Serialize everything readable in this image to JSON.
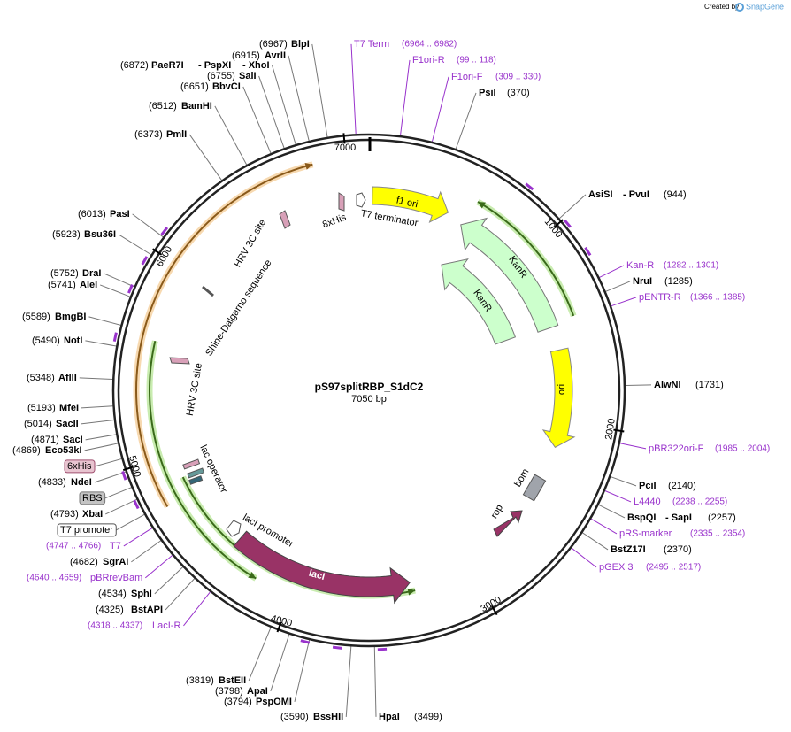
{
  "header": {
    "created_by": "Created by",
    "brand": "SnapGene"
  },
  "map": {
    "title": "pS97splitRBP_S1dC2",
    "length": "7050 bp",
    "ticks": [
      1000,
      2000,
      3000,
      4000,
      5000,
      6000,
      7000
    ]
  },
  "sites": [
    {
      "names": [
        "BlpI"
      ],
      "position": "(6967)"
    },
    {
      "names": [
        "AvrII"
      ],
      "position": "(6915)"
    },
    {
      "names": [
        "PaeR7I",
        "- PspXI",
        "- XhoI"
      ],
      "position": "(6872)"
    },
    {
      "names": [
        "SalI"
      ],
      "position": "(6755)"
    },
    {
      "names": [
        "BbvCI"
      ],
      "position": "(6651)"
    },
    {
      "names": [
        "BamHI"
      ],
      "position": "(6512)"
    },
    {
      "names": [
        "PmlI"
      ],
      "position": "(6373)"
    },
    {
      "names": [
        "PasI"
      ],
      "position": "(6013)"
    },
    {
      "names": [
        "Bsu36I"
      ],
      "position": "(5923)"
    },
    {
      "names": [
        "DraI"
      ],
      "position": "(5752)"
    },
    {
      "names": [
        "AleI"
      ],
      "position": "(5741)"
    },
    {
      "names": [
        "BmgBI"
      ],
      "position": "(5589)"
    },
    {
      "names": [
        "NotI"
      ],
      "position": "(5490)"
    },
    {
      "names": [
        "AflII"
      ],
      "position": "(5348)"
    },
    {
      "names": [
        "MfeI"
      ],
      "position": "(5193)"
    },
    {
      "names": [
        "SacII"
      ],
      "position": "(5014)"
    },
    {
      "names": [
        "SacI"
      ],
      "position": "(4871)"
    },
    {
      "names": [
        "Eco53kI"
      ],
      "position": "(4869)"
    },
    {
      "names": [
        "NdeI"
      ],
      "position": "(4833)"
    },
    {
      "names": [
        "XbaI"
      ],
      "position": "(4793)"
    },
    {
      "names": [
        "SgrAI"
      ],
      "position": "(4682)"
    },
    {
      "names": [
        "SphI"
      ],
      "position": "(4534)"
    },
    {
      "names": [
        "BstAPI"
      ],
      "position": "(4325)"
    },
    {
      "names": [
        "BstEII"
      ],
      "position": "(3819)"
    },
    {
      "names": [
        "ApaI"
      ],
      "position": "(3798)"
    },
    {
      "names": [
        "PspOMI"
      ],
      "position": "(3794)"
    },
    {
      "names": [
        "BssHII"
      ],
      "position": "(3590)"
    },
    {
      "names": [
        "HpaI"
      ],
      "position": "(3499)"
    },
    {
      "names": [
        "PsiI"
      ],
      "position": "(370)"
    },
    {
      "names": [
        "AsiSI",
        "- PvuI"
      ],
      "position": "(944)"
    },
    {
      "names": [
        "NruI"
      ],
      "position": "(1285)"
    },
    {
      "names": [
        "AlwNI"
      ],
      "position": "(1731)"
    },
    {
      "names": [
        "PciI"
      ],
      "position": "(2140)"
    },
    {
      "names": [
        "BspQI",
        "- SapI"
      ],
      "position": "(2257)"
    },
    {
      "names": [
        "BstZ17I"
      ],
      "position": "(2370)"
    }
  ],
  "primers": [
    {
      "name": "T7 Term",
      "range": "(6964 .. 6982)"
    },
    {
      "name": "F1ori-R",
      "range": "(99 .. 118)"
    },
    {
      "name": "F1ori-F",
      "range": "(309 .. 330)"
    },
    {
      "name": "Kan-R",
      "range": "(1282 .. 1301)"
    },
    {
      "name": "pENTR-R",
      "range": "(1366 .. 1385)"
    },
    {
      "name": "pBR322ori-F",
      "range": "(1985 .. 2004)"
    },
    {
      "name": "L4440",
      "range": "(2238 .. 2255)"
    },
    {
      "name": "pRS-marker",
      "range": "(2335 .. 2354)"
    },
    {
      "name": "pGEX 3'",
      "range": "(2495 .. 2517)"
    },
    {
      "name": "T7",
      "range": "(4747 .. 4766)"
    },
    {
      "name": "pBRrevBam",
      "range": "(4640 .. 4659)"
    },
    {
      "name": "LacI-R",
      "range": "(4318 .. 4337)"
    }
  ],
  "features": [
    "f1 ori",
    "KanR",
    "KanR",
    "ori",
    "bom",
    "rop",
    "lacI",
    "lacI promoter",
    "lac operator",
    "HRV 3C site",
    "HRV 3C site",
    "Shine-Dalgarno sequence",
    "8xHis",
    "T7 terminator"
  ],
  "boxed_features": [
    "6xHis",
    "RBS",
    "T7 promoter"
  ]
}
